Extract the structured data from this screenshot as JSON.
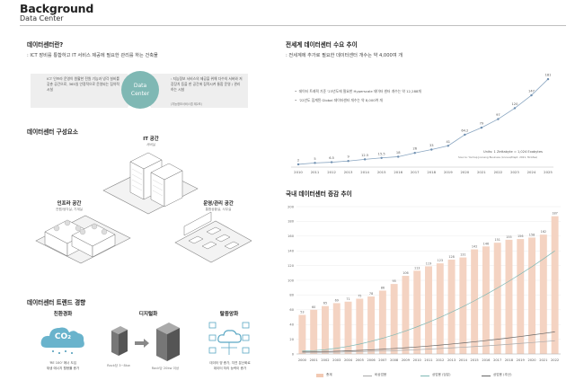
{
  "header": {
    "title": "Background",
    "subtitle": "Data Center"
  },
  "what_is": {
    "heading": "데이터센터란?",
    "desc": ": ICT 장비를 통합하고 IT 서비스 제공에 필요한 관리를 하는 건축물",
    "left_text": "ICT 인프라 운영이 원활한 전원 기능과 냉각 설비를 갖춘 공간으로, 365일 안정적으로 운영되는 집약적 시설",
    "center_label_1": "Data",
    "center_label_2": "Center",
    "right_text": ": 지능정보 서비스의 제공을 위해 다수의 서버와 저장장치 등을 한 공간에 집적시켜 통합 운영 / 관리하는 시설",
    "right_note": "(지능정보서비스법 제2조)"
  },
  "components": {
    "heading": "데이터센터 구성요소",
    "it_space": {
      "title": "IT 공간",
      "sub": "서버실"
    },
    "infra_space": {
      "title": "인프라 공간",
      "sub": "전원/냉각실, 기계실"
    },
    "ops_space": {
      "title": "운영/관리 공간",
      "sub": "통합상황실, 사무실"
    }
  },
  "trends": {
    "heading": "데이터센터 트렌드 경향",
    "items": [
      {
        "title": "친환경화",
        "icon_text": "CO₂",
        "caption": "'RE 100' 에너 도입\n재생 에너지 활용률 증가"
      },
      {
        "title": "디지털화",
        "label_small": "Rack당 3~8kw",
        "label_large": "Rack당 20kw 이상",
        "caption": ""
      },
      {
        "title": "탈중앙화",
        "caption": "데이터 양 증가, 지연 분산화로\n데이터 처리 능력이 증가"
      }
    ]
  },
  "global_chart": {
    "heading": "전세계 데이터센터 수요 추이",
    "desc": ": 전세계에 추가로 필요한 데이터센터 개수는 약 4,000여 개",
    "notes": [
      "데이터 트래픽 기준 '23년도에 필요한 Hyperscale 데이터 센터 개수는 약 12,288개",
      "'22년도 집계된 Global 데이터센터 개수는 약 8,000여 개"
    ],
    "units_1": "Units: 1 Zettabyte = 1,024 Exabytes",
    "units_2": "Source: Yonhap Joonang Business (Annual/Dept. 2021, McAfee)"
  },
  "domestic_chart": {
    "heading": "국내 데이터센터 증감 추이",
    "legend": [
      "총계",
      "비상업용",
      "상업용 (당분)",
      "상업용 (추산)"
    ]
  },
  "chart_data": [
    {
      "type": "bar",
      "title": "전세계 데이터센터 수요 추이",
      "categories": [
        "2010",
        "2011",
        "2012",
        "2013",
        "2014",
        "2015",
        "2016",
        "2017",
        "2018",
        "2019",
        "2020",
        "2021",
        "2022",
        "2023",
        "2024",
        "2025"
      ],
      "values": [
        2,
        5,
        6.5,
        9,
        12.5,
        15.5,
        18,
        26,
        33,
        41,
        64.2,
        79,
        97,
        120,
        147,
        181
      ],
      "value_labels": [
        "2",
        "5",
        "6.5",
        "9",
        "12.5",
        "15.5",
        "18",
        "26",
        "33",
        "41",
        "64.2",
        "79",
        "97",
        "120",
        "147",
        "181"
      ],
      "ylim": [
        0,
        200
      ],
      "grid": false
    },
    {
      "type": "bar",
      "title": "국내 데이터센터 증감 추이",
      "categories": [
        "2000",
        "2001",
        "2002",
        "2003",
        "2004",
        "2005",
        "2006",
        "2007",
        "2008",
        "2009",
        "2010",
        "2011",
        "2012",
        "2013",
        "2014",
        "2015",
        "2016",
        "2017",
        "2018",
        "2019",
        "2020",
        "2021",
        "2022"
      ],
      "series": [
        {
          "name": "총계",
          "values": [
            53,
            60,
            65,
            69,
            71,
            75,
            78,
            86,
            95,
            106,
            113,
            119,
            123,
            128,
            131,
            142,
            146,
            151,
            155,
            156,
            158,
            162,
            187
          ]
        }
      ],
      "value_labels": [
        "53",
        "60",
        "65",
        "69",
        "71",
        "75",
        "78",
        "86",
        "95",
        "106",
        "113",
        "119",
        "123",
        "128",
        "131",
        "142",
        "146",
        "151",
        "155",
        "156",
        "158",
        "162",
        "187"
      ],
      "yticks": [
        0,
        20,
        40,
        60,
        80,
        100,
        120,
        140,
        160,
        180,
        200
      ],
      "ylim": [
        0,
        200
      ],
      "grid": true
    }
  ]
}
